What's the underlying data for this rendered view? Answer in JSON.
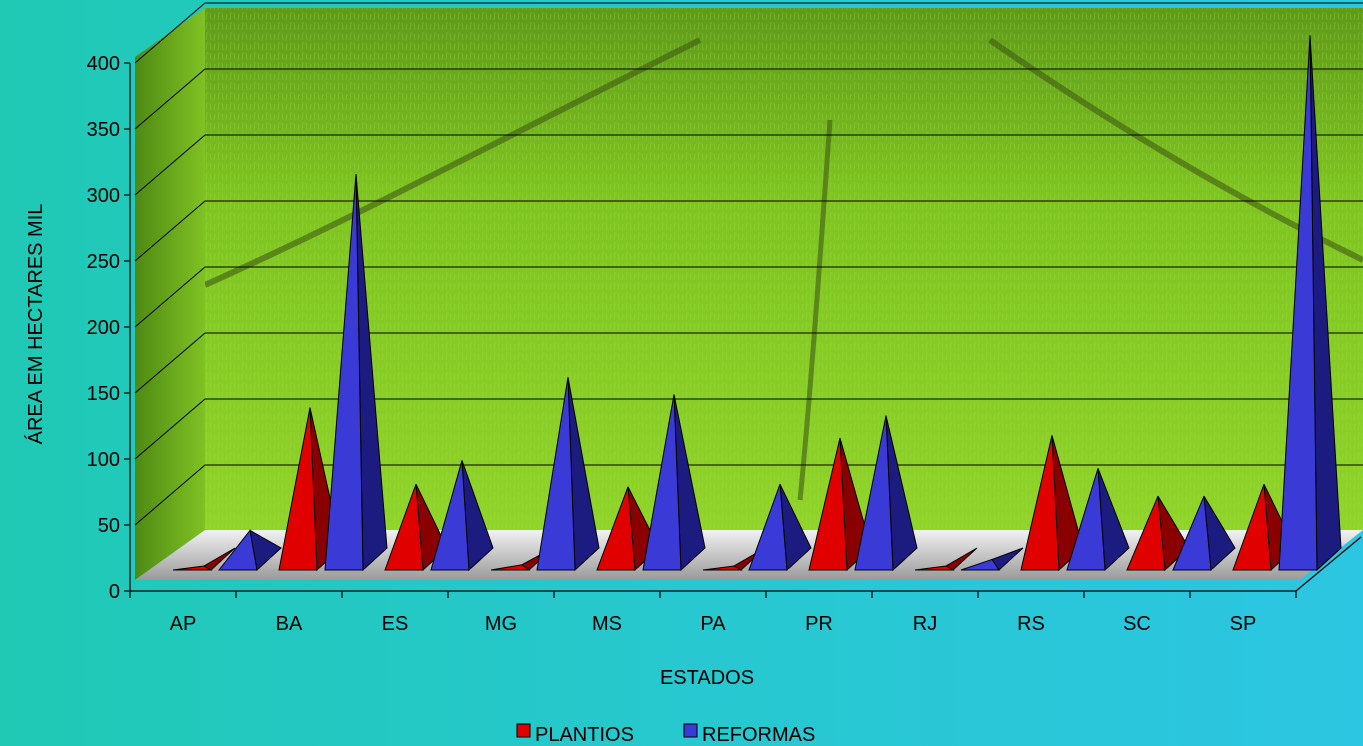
{
  "chart_data": {
    "type": "bar",
    "subtype": "3d-pyramid",
    "title": "",
    "xlabel": "ESTADOS",
    "ylabel": "ÁREA EM HECTARES MIL",
    "ylim": [
      0,
      400
    ],
    "yticks": [
      0,
      50,
      100,
      150,
      200,
      250,
      300,
      350,
      400
    ],
    "categories": [
      "AP",
      "BA",
      "ES",
      "MG",
      "MS",
      "PA",
      "PR",
      "RJ",
      "RS",
      "SC",
      "SP"
    ],
    "series": [
      {
        "name": "PLANTIOS",
        "color": "#e00000",
        "dark": "#8a0000",
        "values": [
          1,
          123,
          65,
          4,
          63,
          1,
          100,
          1,
          102,
          56,
          65
        ]
      },
      {
        "name": "REFORMAS",
        "color": "#3a3ad6",
        "dark": "#1c1c80",
        "values": [
          30,
          300,
          83,
          146,
          133,
          65,
          117,
          8,
          77,
          56,
          405
        ]
      }
    ],
    "grid": true,
    "legend": "bottom",
    "background": "photo of green seedling nursery field"
  }
}
